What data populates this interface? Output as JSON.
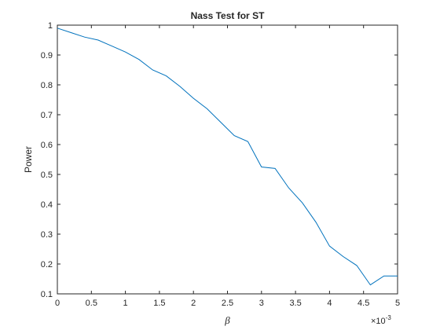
{
  "chart_data": {
    "type": "line",
    "title": "Nass Test for ST",
    "x_label": "β",
    "y_label": "Power",
    "x_multiplier": {
      "base": "×10",
      "exponent": "-3"
    },
    "x": [
      0,
      0.2,
      0.4,
      0.6,
      0.8,
      1,
      1.2,
      1.4,
      1.6,
      1.8,
      2,
      2.2,
      2.4,
      2.6,
      2.8,
      3,
      3.2,
      3.4,
      3.6,
      3.8,
      4,
      4.2,
      4.4,
      4.6,
      4.8,
      5
    ],
    "series": [
      {
        "color": "#0072bd",
        "values": [
          0.99,
          0.975,
          0.96,
          0.95,
          0.93,
          0.91,
          0.885,
          0.85,
          0.83,
          0.795,
          0.755,
          0.72,
          0.675,
          0.63,
          0.61,
          0.525,
          0.52,
          0.455,
          0.405,
          0.34,
          0.26,
          0.225,
          0.195,
          0.13,
          0.16,
          0.16
        ]
      }
    ],
    "xlim": [
      0,
      5
    ],
    "ylim": [
      0.1,
      1
    ],
    "xticks": [
      0,
      0.5,
      1,
      1.5,
      2,
      2.5,
      3,
      3.5,
      4,
      4.5,
      5
    ],
    "yticks": [
      0.1,
      0.2,
      0.3,
      0.4,
      0.5,
      0.6,
      0.7,
      0.8,
      0.9,
      1
    ]
  }
}
